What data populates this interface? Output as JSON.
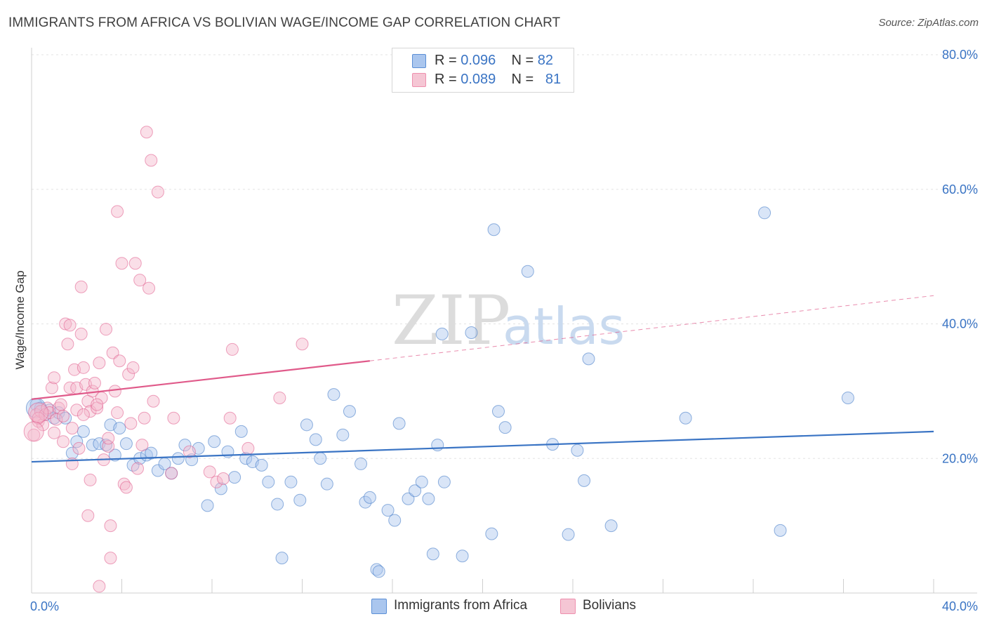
{
  "header": {
    "title": "IMMIGRANTS FROM AFRICA VS BOLIVIAN WAGE/INCOME GAP CORRELATION CHART",
    "source": "Source: ZipAtlas.com"
  },
  "watermark": {
    "zip": "ZIP",
    "atlas": "atlas"
  },
  "legend": {
    "items": [
      {
        "r_label": "R = ",
        "r_value": "0.096",
        "n_label": "N = ",
        "n_value": "82"
      },
      {
        "r_label": "R = ",
        "r_value": "0.089",
        "n_label": "N = ",
        "n_value": "81"
      }
    ]
  },
  "chart_data": {
    "type": "scatter",
    "ylabel": "Wage/Income Gap",
    "xlim": [
      0,
      40
    ],
    "ylim": [
      0,
      80
    ],
    "x_tick_labels": [
      "0.0%",
      "40.0%"
    ],
    "y_ticks": [
      {
        "value": 20,
        "label": "20.0%"
      },
      {
        "value": 40,
        "label": "40.0%"
      },
      {
        "value": 60,
        "label": "60.0%"
      },
      {
        "value": 80,
        "label": "80.0%"
      }
    ],
    "grid": true,
    "legend_placement": "top-center",
    "series": [
      {
        "name": "Immigrants from Africa",
        "color": "#3a74c4",
        "fill": "#aac6ee",
        "trend": {
          "x0": 0,
          "y0": 19.5,
          "x1": 40,
          "y1": 24.0
        },
        "points": [
          [
            0.2,
            28.0
          ],
          [
            0.4,
            27.5
          ],
          [
            0.6,
            26.5
          ],
          [
            0.8,
            27.2
          ],
          [
            1.0,
            26.0
          ],
          [
            1.2,
            26.8
          ],
          [
            1.5,
            26.0
          ],
          [
            1.8,
            20.8
          ],
          [
            2.0,
            22.5
          ],
          [
            2.3,
            24.0
          ],
          [
            2.7,
            22.0
          ],
          [
            3.0,
            22.2
          ],
          [
            3.3,
            22.0
          ],
          [
            3.5,
            25.0
          ],
          [
            3.7,
            20.5
          ],
          [
            3.9,
            24.5
          ],
          [
            4.2,
            22.2
          ],
          [
            4.5,
            19.0
          ],
          [
            4.8,
            20.0
          ],
          [
            5.1,
            20.5
          ],
          [
            5.3,
            20.8
          ],
          [
            5.6,
            18.2
          ],
          [
            5.9,
            19.2
          ],
          [
            6.2,
            17.8
          ],
          [
            6.5,
            20.0
          ],
          [
            6.8,
            22.0
          ],
          [
            7.1,
            19.8
          ],
          [
            7.4,
            21.5
          ],
          [
            7.8,
            13.0
          ],
          [
            8.1,
            22.5
          ],
          [
            8.4,
            15.5
          ],
          [
            8.7,
            21.0
          ],
          [
            9.0,
            17.2
          ],
          [
            9.3,
            24.0
          ],
          [
            9.5,
            20.0
          ],
          [
            9.8,
            19.5
          ],
          [
            10.2,
            19.0
          ],
          [
            10.5,
            16.5
          ],
          [
            10.9,
            13.2
          ],
          [
            11.1,
            5.2
          ],
          [
            11.5,
            16.5
          ],
          [
            11.9,
            13.8
          ],
          [
            12.2,
            25.0
          ],
          [
            12.6,
            22.8
          ],
          [
            12.8,
            20.0
          ],
          [
            13.1,
            16.2
          ],
          [
            13.4,
            29.5
          ],
          [
            13.8,
            23.5
          ],
          [
            14.1,
            27.0
          ],
          [
            14.6,
            19.2
          ],
          [
            14.8,
            13.5
          ],
          [
            15.0,
            14.2
          ],
          [
            15.3,
            3.5
          ],
          [
            15.4,
            3.2
          ],
          [
            15.8,
            12.3
          ],
          [
            16.1,
            10.8
          ],
          [
            16.3,
            25.2
          ],
          [
            16.7,
            14.0
          ],
          [
            17.0,
            15.2
          ],
          [
            17.3,
            16.5
          ],
          [
            17.6,
            14.0
          ],
          [
            17.8,
            5.8
          ],
          [
            18.2,
            38.5
          ],
          [
            18.3,
            16.5
          ],
          [
            18.0,
            22.0
          ],
          [
            19.1,
            5.5
          ],
          [
            19.5,
            38.7
          ],
          [
            20.4,
            8.8
          ],
          [
            20.7,
            27.0
          ],
          [
            20.5,
            54.0
          ],
          [
            21.0,
            24.6
          ],
          [
            22.0,
            47.8
          ],
          [
            23.1,
            22.1
          ],
          [
            23.8,
            8.7
          ],
          [
            24.2,
            21.2
          ],
          [
            24.5,
            16.7
          ],
          [
            24.7,
            34.8
          ],
          [
            25.7,
            10.0
          ],
          [
            29.0,
            26.0
          ],
          [
            32.5,
            56.5
          ],
          [
            33.2,
            9.3
          ],
          [
            36.2,
            29.0
          ]
        ],
        "big_points": [
          [
            0.2,
            27.5
          ]
        ]
      },
      {
        "name": "Bolivians",
        "color": "#e05a8a",
        "fill": "#f5b8cb",
        "trend": {
          "x0": 0,
          "y0": 28.8,
          "x1": 15,
          "y1": 34.5,
          "dash_to_x": 40,
          "dash_to_y": 44.2
        },
        "points": [
          [
            0.1,
            23.5
          ],
          [
            0.2,
            26.5
          ],
          [
            0.3,
            25.5
          ],
          [
            0.4,
            27.0
          ],
          [
            0.5,
            25.0
          ],
          [
            0.6,
            26.5
          ],
          [
            0.7,
            27.5
          ],
          [
            0.8,
            26.8
          ],
          [
            0.9,
            30.5
          ],
          [
            1.0,
            32.0
          ],
          [
            1.0,
            23.8
          ],
          [
            1.2,
            27.5
          ],
          [
            1.3,
            28.0
          ],
          [
            1.4,
            22.5
          ],
          [
            1.5,
            40.0
          ],
          [
            1.6,
            37.0
          ],
          [
            1.7,
            30.5
          ],
          [
            1.8,
            24.5
          ],
          [
            1.8,
            19.2
          ],
          [
            1.9,
            33.2
          ],
          [
            2.0,
            30.5
          ],
          [
            2.1,
            21.5
          ],
          [
            2.2,
            38.5
          ],
          [
            2.2,
            45.5
          ],
          [
            2.3,
            33.5
          ],
          [
            2.4,
            31.0
          ],
          [
            2.5,
            28.5
          ],
          [
            2.6,
            27.0
          ],
          [
            2.7,
            30.0
          ],
          [
            2.8,
            31.2
          ],
          [
            2.5,
            11.5
          ],
          [
            2.6,
            16.8
          ],
          [
            2.9,
            27.5
          ],
          [
            3.0,
            34.2
          ],
          [
            3.1,
            29.0
          ],
          [
            3.2,
            19.8
          ],
          [
            3.3,
            39.2
          ],
          [
            3.4,
            21.8
          ],
          [
            3.5,
            10.0
          ],
          [
            3.5,
            5.2
          ],
          [
            3.6,
            35.7
          ],
          [
            3.7,
            30.0
          ],
          [
            3.8,
            56.7
          ],
          [
            3.9,
            34.5
          ],
          [
            4.0,
            49.0
          ],
          [
            4.1,
            16.2
          ],
          [
            4.2,
            15.7
          ],
          [
            4.3,
            32.5
          ],
          [
            4.5,
            33.5
          ],
          [
            4.6,
            49.0
          ],
          [
            4.7,
            18.5
          ],
          [
            4.8,
            46.5
          ],
          [
            5.0,
            26.0
          ],
          [
            5.1,
            68.5
          ],
          [
            5.2,
            45.3
          ],
          [
            5.3,
            64.3
          ],
          [
            5.4,
            28.5
          ],
          [
            5.6,
            59.6
          ],
          [
            6.2,
            17.8
          ],
          [
            6.3,
            26.0
          ],
          [
            7.0,
            21.0
          ],
          [
            7.9,
            18.0
          ],
          [
            8.2,
            16.5
          ],
          [
            8.5,
            17.0
          ],
          [
            8.8,
            26.0
          ],
          [
            8.9,
            36.2
          ],
          [
            9.6,
            21.5
          ],
          [
            11.0,
            29.0
          ],
          [
            12.0,
            37.0
          ],
          [
            3.0,
            1.0
          ],
          [
            2.0,
            27.2
          ],
          [
            1.1,
            25.8
          ],
          [
            0.3,
            26.0
          ],
          [
            1.4,
            26.3
          ],
          [
            2.9,
            28.0
          ],
          [
            3.4,
            23.0
          ],
          [
            4.4,
            25.2
          ],
          [
            1.7,
            39.8
          ],
          [
            2.3,
            26.5
          ],
          [
            3.8,
            26.8
          ],
          [
            4.9,
            22.0
          ]
        ],
        "big_points": [
          [
            0.1,
            24.0
          ],
          [
            0.3,
            26.8
          ]
        ]
      }
    ]
  }
}
